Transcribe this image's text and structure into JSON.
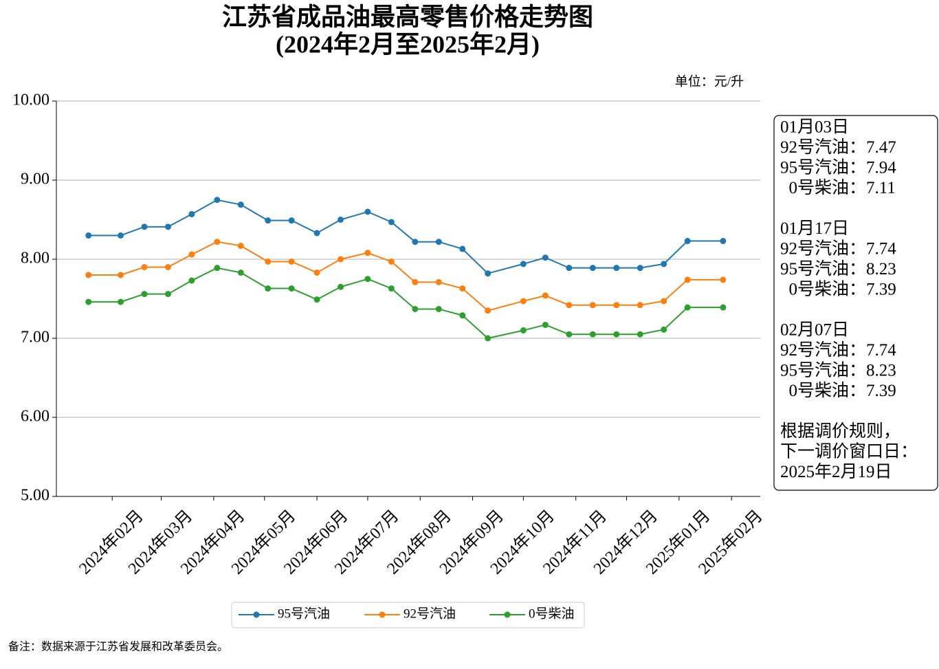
{
  "chart_data": {
    "type": "line",
    "title": "江苏省成品油最高零售价格走势图",
    "subtitle": "(2024年2月至2025年2月)",
    "unit_label": "单位：元/升",
    "footnote": "备注：数据来源于江苏省发展和改革委员会。",
    "x": [
      "2024-01-29",
      "2024-02-17",
      "2024-03-02",
      "2024-03-16",
      "2024-03-30",
      "2024-04-14",
      "2024-04-28",
      "2024-05-14",
      "2024-05-28",
      "2024-06-12",
      "2024-06-26",
      "2024-07-12",
      "2024-07-26",
      "2024-08-09",
      "2024-08-23",
      "2024-09-06",
      "2024-09-21",
      "2024-10-12",
      "2024-10-25",
      "2024-11-08",
      "2024-11-22",
      "2024-12-06",
      "2024-12-20",
      "2025-01-03",
      "2025-01-17",
      "2025-02-07"
    ],
    "series": [
      {
        "name": "95号汽油",
        "color": "#1f77b4",
        "values": [
          8.3,
          8.3,
          8.41,
          8.41,
          8.57,
          8.75,
          8.69,
          8.49,
          8.49,
          8.33,
          8.5,
          8.6,
          8.47,
          8.22,
          8.22,
          8.13,
          7.82,
          7.94,
          8.02,
          7.89,
          7.89,
          7.89,
          7.89,
          7.94,
          8.23,
          8.23
        ]
      },
      {
        "name": "92号汽油",
        "color": "#ff7f0e",
        "values": [
          7.8,
          7.8,
          7.9,
          7.9,
          8.06,
          8.22,
          8.17,
          7.97,
          7.97,
          7.83,
          8.0,
          8.08,
          7.97,
          7.71,
          7.71,
          7.63,
          7.35,
          7.47,
          7.54,
          7.42,
          7.42,
          7.42,
          7.42,
          7.47,
          7.74,
          7.74
        ]
      },
      {
        "name": "0号柴油",
        "color": "#2ca02c",
        "values": [
          7.46,
          7.46,
          7.56,
          7.56,
          7.73,
          7.89,
          7.83,
          7.63,
          7.63,
          7.49,
          7.65,
          7.75,
          7.63,
          7.37,
          7.37,
          7.29,
          7.0,
          7.1,
          7.17,
          7.05,
          7.05,
          7.05,
          7.05,
          7.11,
          7.39,
          7.39
        ]
      }
    ],
    "xlim": [
      "2024-01-10",
      "2025-03-01"
    ],
    "xticks": [
      {
        "value": "2024-02-12",
        "label": "2024年02月"
      },
      {
        "value": "2024-03-12",
        "label": "2024年03月"
      },
      {
        "value": "2024-04-12",
        "label": "2024年04月"
      },
      {
        "value": "2024-05-12",
        "label": "2024年05月"
      },
      {
        "value": "2024-06-12",
        "label": "2024年06月"
      },
      {
        "value": "2024-07-12",
        "label": "2024年07月"
      },
      {
        "value": "2024-08-12",
        "label": "2024年08月"
      },
      {
        "value": "2024-09-12",
        "label": "2024年09月"
      },
      {
        "value": "2024-10-12",
        "label": "2024年10月"
      },
      {
        "value": "2024-11-12",
        "label": "2024年11月"
      },
      {
        "value": "2024-12-12",
        "label": "2024年12月"
      },
      {
        "value": "2025-01-12",
        "label": "2025年01月"
      },
      {
        "value": "2025-02-12",
        "label": "2025年02月"
      }
    ],
    "ylim": [
      5,
      10
    ],
    "yticks": [
      {
        "value": 5,
        "label": "5.00"
      },
      {
        "value": 6,
        "label": "6.00"
      },
      {
        "value": 7,
        "label": "7.00"
      },
      {
        "value": 8,
        "label": "8.00"
      },
      {
        "value": 9,
        "label": "9.00"
      },
      {
        "value": 10,
        "label": "10.00"
      }
    ],
    "grid": true,
    "legend": "bottom",
    "annotation": {
      "entries": [
        {
          "date": "01月03日",
          "lines": [
            "92号汽油：7.47",
            "95号汽油：7.94",
            "  0号柴油：7.11"
          ]
        },
        {
          "date": "01月17日",
          "lines": [
            "92号汽油：7.74",
            "95号汽油：8.23",
            "  0号柴油：7.39"
          ]
        },
        {
          "date": "02月07日",
          "lines": [
            "92号汽油：7.74",
            "95号汽油：8.23",
            "  0号柴油：7.39"
          ]
        }
      ],
      "note_lines": [
        "根据调价规则，",
        "下一调价窗口日：",
        "2025年2月19日"
      ]
    }
  }
}
